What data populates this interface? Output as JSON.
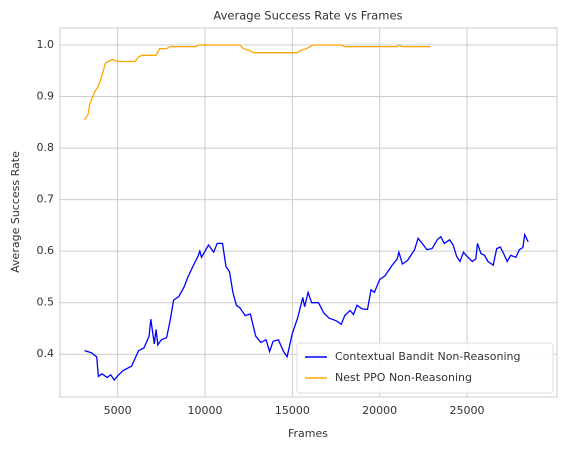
{
  "chart_data": {
    "type": "line",
    "title": "Average Success Rate vs Frames",
    "xlabel": "Frames",
    "ylabel": "Average Success Rate",
    "xlim": [
      1700,
      30150
    ],
    "ylim": [
      0.317,
      1.033
    ],
    "xticks": [
      5000,
      10000,
      15000,
      20000,
      25000
    ],
    "yticks": [
      0.4,
      0.5,
      0.6,
      0.7,
      0.8,
      0.9,
      {
        "value": 1,
        "label": "1.0"
      }
    ],
    "grid": true,
    "legend": "lower right",
    "series": [
      {
        "name": "Contextual Bandit Non-Reasoning",
        "color": "#0000ff",
        "x": [
          3100,
          3500,
          3800,
          3900,
          4100,
          4400,
          4600,
          4800,
          5000,
          5300,
          5800,
          6200,
          6500,
          6800,
          6900,
          7100,
          7200,
          7300,
          7500,
          7800,
          8000,
          8200,
          8500,
          8800,
          9000,
          9300,
          9600,
          9700,
          9800,
          10000,
          10200,
          10500,
          10700,
          11000,
          11200,
          11400,
          11600,
          11800,
          12000,
          12300,
          12600,
          12900,
          13200,
          13500,
          13700,
          13900,
          14200,
          14500,
          14700,
          15000,
          15300,
          15600,
          15700,
          15900,
          16100,
          16500,
          16800,
          17100,
          17500,
          17800,
          18000,
          18300,
          18500,
          18700,
          19000,
          19300,
          19500,
          19700,
          20000,
          20300,
          20700,
          21000,
          21100,
          21300,
          21600,
          22000,
          22200,
          22500,
          22700,
          23000,
          23300,
          23500,
          23700,
          24000,
          24200,
          24400,
          24600,
          24800,
          25000,
          25300,
          25500,
          25600,
          25800,
          26000,
          26200,
          26500,
          26700,
          26900,
          27100,
          27300,
          27500,
          27800,
          28000,
          28200,
          28300,
          28500
        ],
        "values": [
          0.407,
          0.403,
          0.395,
          0.357,
          0.362,
          0.355,
          0.36,
          0.35,
          0.358,
          0.368,
          0.377,
          0.407,
          0.412,
          0.435,
          0.468,
          0.42,
          0.448,
          0.418,
          0.428,
          0.432,
          0.465,
          0.505,
          0.512,
          0.53,
          0.548,
          0.57,
          0.59,
          0.6,
          0.588,
          0.6,
          0.612,
          0.598,
          0.615,
          0.615,
          0.57,
          0.56,
          0.52,
          0.495,
          0.49,
          0.475,
          0.478,
          0.435,
          0.423,
          0.428,
          0.405,
          0.425,
          0.428,
          0.405,
          0.395,
          0.44,
          0.47,
          0.51,
          0.492,
          0.52,
          0.5,
          0.5,
          0.48,
          0.47,
          0.465,
          0.458,
          0.475,
          0.485,
          0.477,
          0.495,
          0.488,
          0.487,
          0.525,
          0.52,
          0.545,
          0.552,
          0.572,
          0.585,
          0.598,
          0.575,
          0.582,
          0.603,
          0.625,
          0.612,
          0.603,
          0.605,
          0.622,
          0.628,
          0.615,
          0.622,
          0.612,
          0.59,
          0.58,
          0.598,
          0.59,
          0.58,
          0.585,
          0.615,
          0.595,
          0.592,
          0.58,
          0.573,
          0.605,
          0.608,
          0.595,
          0.58,
          0.592,
          0.588,
          0.603,
          0.607,
          0.632,
          0.618
        ]
      },
      {
        "name": "Nest PPO Non-Reasoning",
        "color": "#ffa500",
        "x": [
          3100,
          3300,
          3400,
          3700,
          3900,
          4100,
          4300,
          4700,
          5000,
          5500,
          6000,
          6200,
          6400,
          6600,
          7200,
          7400,
          7800,
          8000,
          9000,
          9500,
          9600,
          12000,
          12200,
          12500,
          12800,
          15000,
          15300,
          15500,
          15800,
          16200,
          17800,
          18000,
          21000,
          21100,
          21300,
          22900
        ],
        "values": [
          0.855,
          0.865,
          0.885,
          0.91,
          0.92,
          0.94,
          0.965,
          0.972,
          0.968,
          0.968,
          0.968,
          0.977,
          0.98,
          0.98,
          0.98,
          0.993,
          0.993,
          0.997,
          0.997,
          0.997,
          1.0,
          1.0,
          0.993,
          0.99,
          0.985,
          0.985,
          0.985,
          0.99,
          0.993,
          1.0,
          1.0,
          0.997,
          0.997,
          1.0,
          0.997,
          0.997
        ]
      }
    ]
  }
}
